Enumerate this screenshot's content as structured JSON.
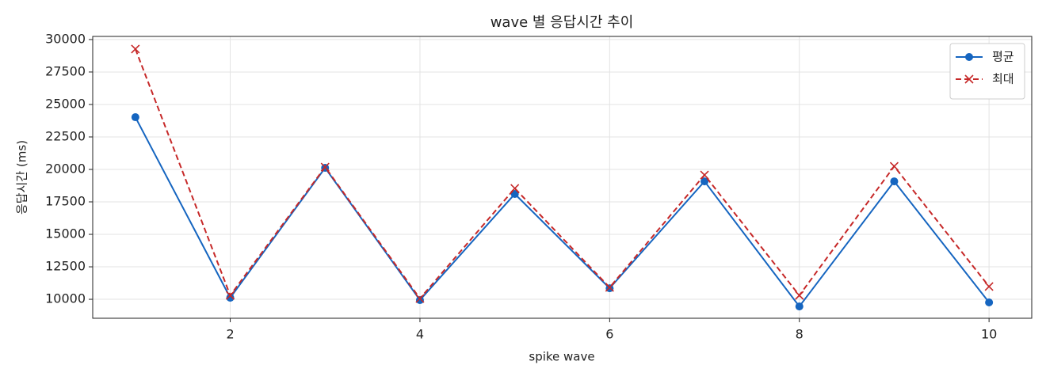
{
  "chart_data": {
    "type": "line",
    "title": "wave 별 응답시간 추이",
    "xlabel": "spike wave",
    "ylabel": "응답시간 (ms)",
    "x": [
      1,
      2,
      3,
      4,
      5,
      6,
      7,
      8,
      9,
      10
    ],
    "series": [
      {
        "name": "평균",
        "color": "#1565c0",
        "marker": "o",
        "linestyle": "solid",
        "values": [
          24020,
          10120,
          20120,
          9940,
          18110,
          10850,
          19080,
          9450,
          19080,
          9760
        ]
      },
      {
        "name": "최대",
        "color": "#c62828",
        "marker": "x",
        "linestyle": "dashed",
        "values": [
          29270,
          10300,
          20180,
          10060,
          18540,
          10910,
          19570,
          10300,
          20240,
          10980
        ]
      }
    ],
    "xlim": [
      0.55,
      10.45
    ],
    "ylim": [
      8540,
      30240
    ],
    "xticks": [
      2,
      4,
      6,
      8,
      10
    ],
    "yticks": [
      10000,
      12500,
      15000,
      17500,
      20000,
      22500,
      25000,
      27500,
      30000
    ],
    "grid": true,
    "legend": "upper right"
  }
}
